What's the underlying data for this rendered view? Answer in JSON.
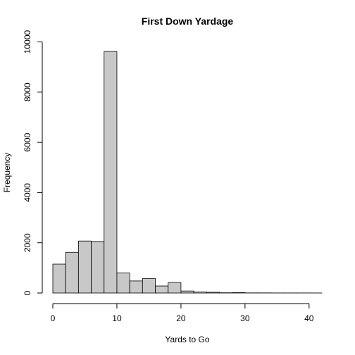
{
  "chart_data": {
    "type": "bar",
    "title": "First Down Yardage",
    "xlabel": "Yards to Go",
    "ylabel": "Frequency",
    "bin_edges": [
      0,
      2,
      4,
      6,
      8,
      10,
      12,
      14,
      16,
      18,
      20,
      22,
      24,
      26,
      28,
      30,
      32,
      34,
      36,
      38,
      40,
      42
    ],
    "values": [
      1150,
      1620,
      2070,
      2050,
      9620,
      800,
      480,
      580,
      280,
      420,
      80,
      40,
      30,
      10,
      15,
      5,
      5,
      3,
      3,
      3,
      2
    ],
    "xlim": [
      0,
      42
    ],
    "ylim": [
      0,
      10000
    ],
    "xticks": [
      0,
      10,
      20,
      30,
      40
    ],
    "yticks": [
      0,
      2000,
      4000,
      6000,
      8000,
      10000
    ],
    "grid": false,
    "legend": "none"
  }
}
